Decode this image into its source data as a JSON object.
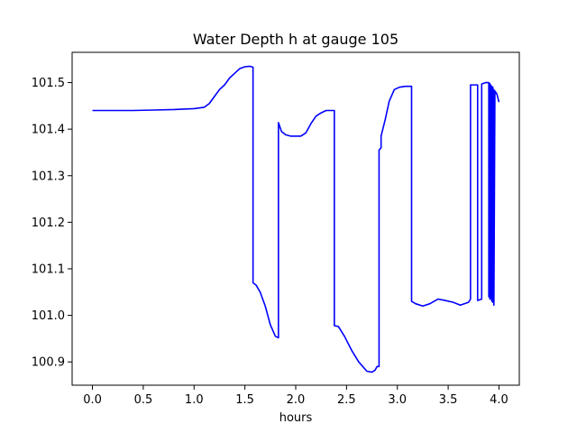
{
  "chart_data": {
    "type": "line",
    "title": "Water Depth h at gauge 105",
    "xlabel": "hours",
    "ylabel": "",
    "xlim": [
      -0.2,
      4.2
    ],
    "ylim": [
      100.85,
      101.565
    ],
    "xticks": [
      0.0,
      0.5,
      1.0,
      1.5,
      2.0,
      2.5,
      3.0,
      3.5,
      4.0
    ],
    "xtick_labels": [
      "0.0",
      "0.5",
      "1.0",
      "1.5",
      "2.0",
      "2.5",
      "3.0",
      "3.5",
      "4.0"
    ],
    "yticks": [
      100.9,
      101.0,
      101.1,
      101.2,
      101.3,
      101.4,
      101.5
    ],
    "ytick_labels": [
      "100.9",
      "101.0",
      "101.1",
      "101.2",
      "101.3",
      "101.4",
      "101.5"
    ],
    "grid": false,
    "series": [
      {
        "color": "#0000ff",
        "x": [
          0.0,
          0.2,
          0.4,
          0.6,
          0.8,
          1.0,
          1.1,
          1.15,
          1.2,
          1.25,
          1.3,
          1.35,
          1.4,
          1.45,
          1.5,
          1.55,
          1.58,
          1.58,
          1.61,
          1.65,
          1.7,
          1.75,
          1.8,
          1.83,
          1.83,
          1.86,
          1.9,
          1.95,
          2.0,
          2.05,
          2.1,
          2.15,
          2.2,
          2.25,
          2.3,
          2.35,
          2.38,
          2.38,
          2.42,
          2.48,
          2.55,
          2.62,
          2.7,
          2.75,
          2.78,
          2.8,
          2.82,
          2.82,
          2.84,
          2.84,
          2.88,
          2.92,
          2.97,
          3.02,
          3.08,
          3.1,
          3.14,
          3.14,
          3.18,
          3.25,
          3.32,
          3.4,
          3.47,
          3.55,
          3.62,
          3.7,
          3.72,
          3.72,
          3.79,
          3.79,
          3.83,
          3.83,
          3.87,
          3.9,
          3.9,
          3.91,
          3.91,
          3.92,
          3.92,
          3.93,
          3.93,
          3.94,
          3.94,
          3.95,
          3.95,
          3.96,
          3.98,
          4.0
        ],
        "y": [
          101.44,
          101.44,
          101.44,
          101.441,
          101.442,
          101.444,
          101.447,
          101.455,
          101.47,
          101.485,
          101.495,
          101.51,
          101.52,
          101.53,
          101.534,
          101.535,
          101.533,
          101.07,
          101.065,
          101.05,
          101.02,
          100.98,
          100.955,
          100.952,
          101.414,
          101.395,
          101.388,
          101.385,
          101.385,
          101.385,
          101.392,
          101.412,
          101.428,
          101.435,
          101.44,
          101.44,
          101.44,
          100.978,
          100.976,
          100.955,
          100.925,
          100.9,
          100.88,
          100.878,
          100.882,
          100.89,
          100.89,
          101.355,
          101.36,
          101.385,
          101.42,
          101.46,
          101.485,
          101.49,
          101.492,
          101.492,
          101.492,
          101.03,
          101.025,
          101.02,
          101.025,
          101.035,
          101.032,
          101.028,
          101.022,
          101.028,
          101.035,
          101.495,
          101.495,
          101.032,
          101.035,
          101.497,
          101.5,
          101.5,
          101.04,
          101.498,
          101.035,
          101.495,
          101.035,
          101.492,
          101.03,
          101.49,
          101.028,
          101.485,
          101.022,
          101.482,
          101.475,
          101.458
        ]
      }
    ]
  }
}
